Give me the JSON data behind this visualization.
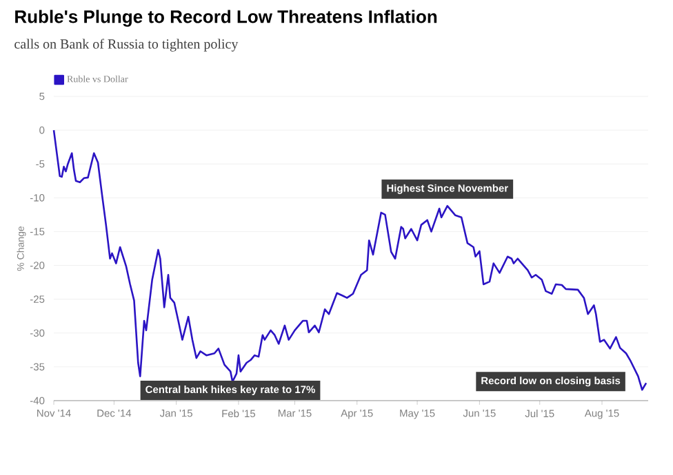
{
  "chart_data": {
    "type": "line",
    "title": "Ruble's Plunge to Record Low Threatens Inflation",
    "subtitle": "calls on Bank of Russia to tighten policy",
    "ylabel": "% Change",
    "x": [
      "2014-11-01",
      "2014-11-04",
      "2014-11-05",
      "2014-11-06",
      "2014-11-07",
      "2014-11-08",
      "2014-11-10",
      "2014-11-11",
      "2014-11-12",
      "2014-11-14",
      "2014-11-16",
      "2014-11-18",
      "2014-11-21",
      "2014-11-23",
      "2014-11-25",
      "2014-11-27",
      "2014-11-29",
      "2014-11-30",
      "2014-12-02",
      "2014-12-04",
      "2014-12-07",
      "2014-12-09",
      "2014-12-11",
      "2014-12-13",
      "2014-12-14",
      "2014-12-16",
      "2014-12-17",
      "2014-12-20",
      "2014-12-23",
      "2014-12-24",
      "2014-12-26",
      "2014-12-28",
      "2014-12-29",
      "2014-12-31",
      "2015-01-02",
      "2015-01-04",
      "2015-01-07",
      "2015-01-09",
      "2015-01-11",
      "2015-01-13",
      "2015-01-16",
      "2015-01-20",
      "2015-01-22",
      "2015-01-25",
      "2015-01-28",
      "2015-01-29",
      "2015-01-31",
      "2015-02-01",
      "2015-02-02",
      "2015-02-05",
      "2015-02-07",
      "2015-02-09",
      "2015-02-11",
      "2015-02-13",
      "2015-02-14",
      "2015-02-17",
      "2015-02-19",
      "2015-02-21",
      "2015-02-24",
      "2015-02-26",
      "2015-03-01",
      "2015-03-05",
      "2015-03-07",
      "2015-03-08",
      "2015-03-11",
      "2015-03-13",
      "2015-03-16",
      "2015-03-18",
      "2015-03-22",
      "2015-03-25",
      "2015-03-27",
      "2015-03-30",
      "2015-04-01",
      "2015-04-03",
      "2015-04-06",
      "2015-04-07",
      "2015-04-09",
      "2015-04-13",
      "2015-04-15",
      "2015-04-18",
      "2015-04-20",
      "2015-04-23",
      "2015-04-24",
      "2015-04-25",
      "2015-04-28",
      "2015-05-01",
      "2015-05-03",
      "2015-05-06",
      "2015-05-08",
      "2015-05-12",
      "2015-05-13",
      "2015-05-16",
      "2015-05-20",
      "2015-05-23",
      "2015-05-26",
      "2015-05-29",
      "2015-05-30",
      "2015-06-01",
      "2015-06-03",
      "2015-06-06",
      "2015-06-08",
      "2015-06-11",
      "2015-06-15",
      "2015-06-17",
      "2015-06-18",
      "2015-06-20",
      "2015-06-25",
      "2015-06-27",
      "2015-06-29",
      "2015-07-02",
      "2015-07-04",
      "2015-07-07",
      "2015-07-09",
      "2015-07-12",
      "2015-07-14",
      "2015-07-20",
      "2015-07-23",
      "2015-07-25",
      "2015-07-28",
      "2015-07-29",
      "2015-07-31",
      "2015-08-02",
      "2015-08-05",
      "2015-08-08",
      "2015-08-10",
      "2015-08-13",
      "2015-08-15",
      "2015-08-19",
      "2015-08-21",
      "2015-08-23"
    ],
    "series": [
      {
        "name": "Ruble vs Dollar",
        "color": "#2b14c4",
        "values": [
          0,
          -6.8,
          -6.9,
          -5.4,
          -6.1,
          -5.0,
          -3.4,
          -5.8,
          -7.5,
          -7.7,
          -7.1,
          -7.0,
          -3.4,
          -4.8,
          -9.5,
          -14,
          -19,
          -18.2,
          -19.7,
          -17.3,
          -20.1,
          -22.8,
          -25.2,
          -34.4,
          -36.4,
          -28.2,
          -29.6,
          -22.1,
          -17.7,
          -19,
          -26.2,
          -21.4,
          -24.8,
          -25.5,
          -28.2,
          -31,
          -27.6,
          -31,
          -33.7,
          -32.7,
          -33.3,
          -33,
          -32.3,
          -34.7,
          -35.7,
          -37.2,
          -36,
          -33.3,
          -35.7,
          -34.4,
          -34,
          -33.3,
          -33.5,
          -30.3,
          -31,
          -29.6,
          -30.3,
          -31.6,
          -28.9,
          -31,
          -29.6,
          -28.2,
          -28.2,
          -29.9,
          -28.9,
          -29.9,
          -26.5,
          -27.2,
          -24.1,
          -24.5,
          -24.8,
          -24.2,
          -22.8,
          -21.4,
          -20.7,
          -16.3,
          -18.4,
          -12.2,
          -12.5,
          -18,
          -19,
          -14.3,
          -14.6,
          -16,
          -14.6,
          -16.3,
          -14,
          -13.3,
          -15,
          -11.6,
          -12.9,
          -11.2,
          -12.6,
          -12.9,
          -16.7,
          -17.3,
          -18.7,
          -17.9,
          -22.8,
          -22.4,
          -19.7,
          -21.1,
          -18.7,
          -19,
          -19.7,
          -19,
          -20.7,
          -21.8,
          -21.4,
          -22.1,
          -23.8,
          -24.2,
          -22.8,
          -22.9,
          -23.5,
          -23.6,
          -24.8,
          -27.2,
          -25.9,
          -27.2,
          -31.3,
          -31,
          -32.3,
          -30.6,
          -32.2,
          -33,
          -34,
          -36.4,
          -38.4,
          -37.4
        ]
      }
    ],
    "xlim": [
      "2014-11-01",
      "2015-08-24"
    ],
    "xticks": [
      {
        "value": "2014-11-01",
        "label": "Nov '14"
      },
      {
        "value": "2014-12-01",
        "label": "Dec '14"
      },
      {
        "value": "2015-01-01",
        "label": "Jan '15"
      },
      {
        "value": "2015-02-01",
        "label": "Feb '15"
      },
      {
        "value": "2015-03-01",
        "label": "Mar '15"
      },
      {
        "value": "2015-04-01",
        "label": "Apr '15"
      },
      {
        "value": "2015-05-01",
        "label": "May '15"
      },
      {
        "value": "2015-06-01",
        "label": "Jun '15"
      },
      {
        "value": "2015-07-01",
        "label": "Jul '15"
      },
      {
        "value": "2015-08-01",
        "label": "Aug '15"
      }
    ],
    "ylim": [
      -40,
      5
    ],
    "yticks": [
      -40,
      -35,
      -30,
      -25,
      -20,
      -15,
      -10,
      -5,
      0,
      5
    ],
    "annotations": [
      {
        "text": "Central bank hikes key rate to 17%",
        "x": "2014-12-14",
        "y": -36.4
      },
      {
        "text": "Highest Since November",
        "x": "2015-05-16",
        "y": -11.2
      },
      {
        "text": "Record low on closing basis",
        "x": "2015-08-21",
        "y": -38.4
      }
    ],
    "grid": "y",
    "legend": "top left"
  }
}
